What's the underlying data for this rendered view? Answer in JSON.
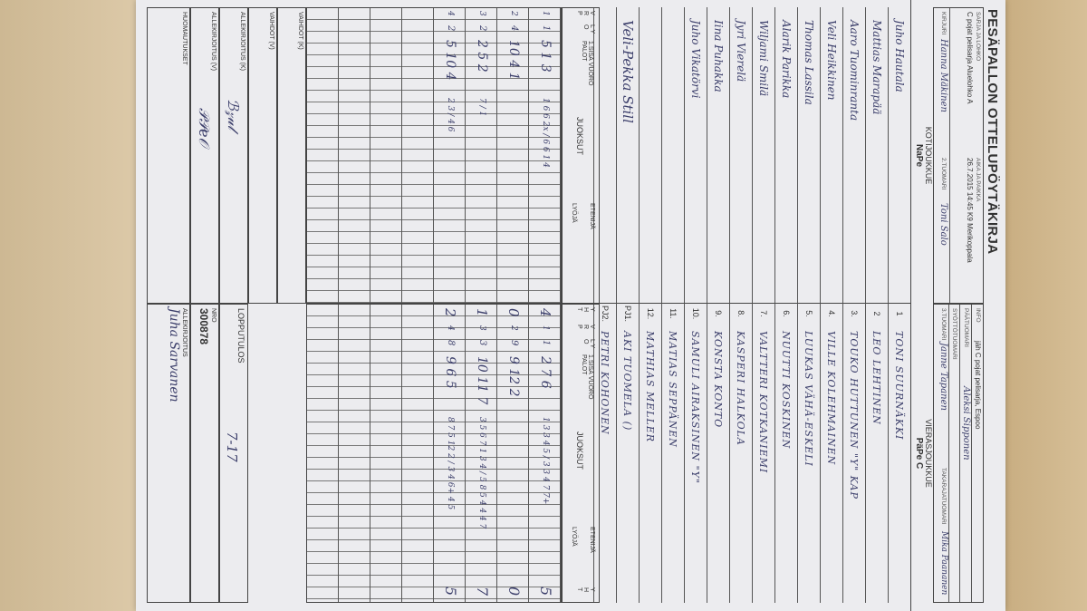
{
  "form": {
    "title": "PESÄPALLON OTTELUPÖYTÄKIRJA",
    "series_label": "SARJA JA LOHKO",
    "series_value": "C pojat pelisarja Aluelohko A",
    "time_place_label": "AIKA JA PAIKKA",
    "time_place_value": "26.7.2015 14:45 K9 Merikoppala",
    "scorer_label": "KIRJURI",
    "scorer_value": "Hanna Mäkinen",
    "umpire2_label": "2.TUOMARI",
    "umpire2_value": "Toni Salo",
    "info_label": "INFO",
    "info_value": "jäh C pojat pelisarja, Espoo",
    "head_umpire_label": "PÄÄTUOMARI",
    "head_umpire_value": "Aleksi Sipponen",
    "pitch_umpire_label": "SYÖTTÖTUOMARI",
    "umpire3_label": "3.TUOMARI",
    "umpire3_value": "Janne Tapanen",
    "back_umpire_label": "TAKARAJATUOMARI",
    "back_umpire_value": "Mika Paananen"
  },
  "home": {
    "label": "KOTIJOUKKUE",
    "team": "NaPe",
    "players": [
      "Juho Hautala",
      "Mattias Marapää",
      "Aaro Tuominranta",
      "Veli Heikkinen",
      "Thomas Lassila",
      "Alarik Parikka",
      "Wiljami Smilä",
      "Jyri Vierelä",
      "Iina Puhakka",
      "Juho Vikatörvi"
    ],
    "coach": "Veli-Pekka Still",
    "innings": [
      {
        "v": "1",
        "l": "1",
        "palot": "5 1 3",
        "runs": "1 6 6 2x / 6 6 1 4",
        "total": "4"
      },
      {
        "v": "2",
        "l": "4",
        "palot": "10 4 1",
        "runs": "",
        "total": "0"
      },
      {
        "v": "3",
        "l": "2",
        "palot": "2 5 2",
        "runs": "7 / 1",
        "total": "1"
      },
      {
        "v": "4",
        "l": "2",
        "palot": "5 10 4",
        "runs": "2 3 / 4 6",
        "total": "2"
      }
    ]
  },
  "away": {
    "label": "VIERASJOUKKUE",
    "team": "PäPe C",
    "numbers": [
      "1",
      "2",
      "3.",
      "4.",
      "5.",
      "6.",
      "7.",
      "8.",
      "9.",
      "10.",
      "11.",
      "12.",
      "PJ1.",
      "PJ2."
    ],
    "players": [
      "Toni Suurnäkki",
      "Leo Lehtinen",
      "Touko Huttunen \"y\" kap",
      "Ville Kolehmainen",
      "Luukas Vähä-Eskeli",
      "Nuutti Koskinen",
      "Valtteri Kotkaniemi",
      "Kasperi Halkola",
      "Konsta Konto",
      "Samuli Airaksinen \"y\"",
      "Matias Seppänen",
      "Mathias Meller",
      "Aki Tuomela ()",
      "Petri Kohonen"
    ],
    "innings": [
      {
        "v": "1",
        "l": "1",
        "palot": "2 7 6",
        "runs": "1 3 3 4 5 / 3 3 4 7 7+",
        "total": "5"
      },
      {
        "v": "2",
        "l": "9",
        "palot": "9 12 2",
        "runs": "",
        "total": "0"
      },
      {
        "v": "3",
        "l": "3",
        "palot": "10 11 7",
        "runs": "3 5 6 7 1 3 4 / 5 8 5 4 4 4 7",
        "total": "7"
      },
      {
        "v": "4",
        "l": "8",
        "palot": "9 6 5",
        "runs": "8 7 5 12 2 / 3 4 6+ 4 5",
        "total": "5"
      }
    ]
  },
  "headers": {
    "vrp": "V R P",
    "lyo": "L Y O",
    "first_inning": "1.SISÄ VUORO PALOT",
    "runs": "JUOKSUT",
    "advancer": "ETENIJÄ",
    "batter": "LYÖJÄ",
    "total": "Y H T"
  },
  "footer": {
    "subs_home": "VAIHDOT (K)",
    "subs_away": "VAIHDOT (V)",
    "sign_home": "ALLEKIRJOITUS (K)",
    "sign_away": "ALLEKIRJOITUS (V)",
    "remarks": "HUOMAUTUKSET",
    "final_label": "LOPPUTULOS",
    "final_value": "7-17",
    "nro_label": "NRO",
    "nro_value": "300878",
    "signature_label": "ALLEKIRJOITUS",
    "signature_value": "Juha Sarvanen"
  },
  "colors": {
    "ink": "#3c3f6b",
    "paper": "#ececef",
    "desk": "#d9c7a6"
  }
}
